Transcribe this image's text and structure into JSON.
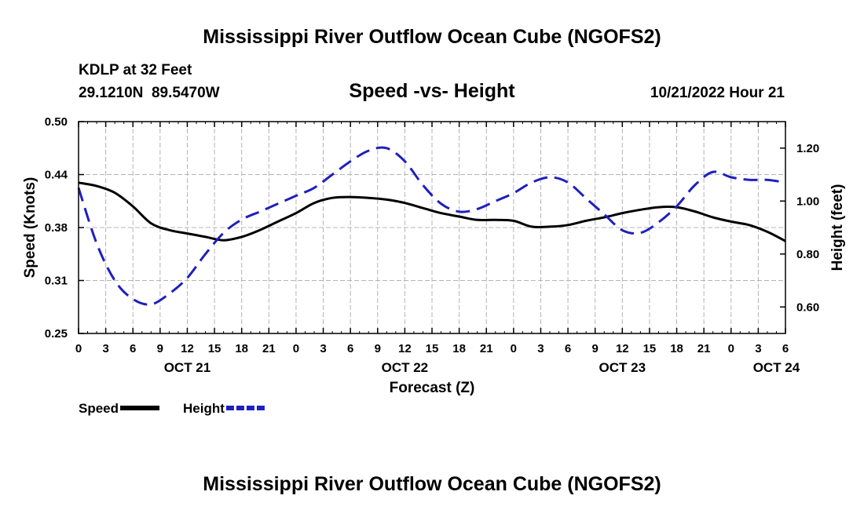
{
  "chart_data": {
    "type": "line",
    "title": "Mississippi River Outflow Ocean Cube (NGOFS2)",
    "subtitle": "Speed -vs- Height",
    "station": "KDLP at 32 Feet",
    "location": "29.1210N  89.5470W",
    "timestamp": "10/21/2022 Hour 21",
    "footer_title": "Mississippi River Outflow Ocean Cube (NGOFS2)",
    "xlabel": "Forecast (Z)",
    "ylabel_left": "Speed (Knots)",
    "ylabel_right": "Height (feet)",
    "x_unit": "hours from 00Z Oct 21",
    "xlim": [
      0,
      78
    ],
    "ylim_left": [
      0.25,
      0.5
    ],
    "ylim_right": [
      0.5,
      1.3
    ],
    "grid": true,
    "left_ticks": [
      {
        "value": 0.25,
        "label": "0.25"
      },
      {
        "value": 0.3125,
        "label": "0.31"
      },
      {
        "value": 0.375,
        "label": "0.38"
      },
      {
        "value": 0.4375,
        "label": "0.44"
      },
      {
        "value": 0.5,
        "label": "0.50"
      }
    ],
    "right_ticks": [
      {
        "value": 0.6,
        "label": "0.60"
      },
      {
        "value": 0.8,
        "label": "0.80"
      },
      {
        "value": 1.0,
        "label": "1.00"
      },
      {
        "value": 1.2,
        "label": "1.20"
      }
    ],
    "x_ticks": [
      {
        "value": 0,
        "label": "0"
      },
      {
        "value": 3,
        "label": "3"
      },
      {
        "value": 6,
        "label": "6"
      },
      {
        "value": 9,
        "label": "9"
      },
      {
        "value": 12,
        "label": "12"
      },
      {
        "value": 15,
        "label": "15"
      },
      {
        "value": 18,
        "label": "18"
      },
      {
        "value": 21,
        "label": "21"
      },
      {
        "value": 24,
        "label": "0"
      },
      {
        "value": 27,
        "label": "3"
      },
      {
        "value": 30,
        "label": "6"
      },
      {
        "value": 33,
        "label": "9"
      },
      {
        "value": 36,
        "label": "12"
      },
      {
        "value": 39,
        "label": "15"
      },
      {
        "value": 42,
        "label": "18"
      },
      {
        "value": 45,
        "label": "21"
      },
      {
        "value": 48,
        "label": "0"
      },
      {
        "value": 51,
        "label": "3"
      },
      {
        "value": 54,
        "label": "6"
      },
      {
        "value": 57,
        "label": "9"
      },
      {
        "value": 60,
        "label": "12"
      },
      {
        "value": 63,
        "label": "15"
      },
      {
        "value": 66,
        "label": "18"
      },
      {
        "value": 69,
        "label": "21"
      },
      {
        "value": 72,
        "label": "0"
      },
      {
        "value": 75,
        "label": "3"
      },
      {
        "value": 78,
        "label": "6"
      }
    ],
    "day_labels": [
      {
        "value": 12,
        "label": "OCT 21"
      },
      {
        "value": 36,
        "label": "OCT 22"
      },
      {
        "value": 60,
        "label": "OCT 23"
      },
      {
        "value": 77,
        "label": "OCT 24"
      }
    ],
    "series": [
      {
        "name": "Speed",
        "axis": "left",
        "color": "#000000",
        "dash": "solid",
        "x": [
          0,
          2,
          4,
          6,
          8,
          10,
          12,
          14,
          16,
          18,
          20,
          22,
          24,
          26,
          28,
          30,
          32,
          34,
          36,
          38,
          40,
          42,
          44,
          46,
          48,
          50,
          52,
          54,
          56,
          58,
          60,
          62,
          64,
          66,
          68,
          70,
          72,
          74,
          76,
          78
        ],
        "values": [
          0.428,
          0.424,
          0.416,
          0.4,
          0.38,
          0.372,
          0.368,
          0.364,
          0.36,
          0.364,
          0.372,
          0.382,
          0.392,
          0.404,
          0.41,
          0.411,
          0.41,
          0.408,
          0.404,
          0.398,
          0.392,
          0.388,
          0.384,
          0.384,
          0.383,
          0.376,
          0.376,
          0.378,
          0.383,
          0.387,
          0.392,
          0.396,
          0.399,
          0.399,
          0.394,
          0.387,
          0.382,
          0.378,
          0.37,
          0.359
        ]
      },
      {
        "name": "Height",
        "axis": "right",
        "color": "#1f1fbf",
        "dash": "dashed",
        "x": [
          0,
          2,
          4,
          6,
          8,
          10,
          12,
          14,
          16,
          18,
          20,
          22,
          24,
          26,
          28,
          30,
          32,
          34,
          36,
          38,
          40,
          42,
          44,
          46,
          48,
          50,
          52,
          54,
          56,
          58,
          60,
          62,
          64,
          66,
          68,
          70,
          72,
          74,
          76,
          78
        ],
        "values": [
          1.05,
          0.84,
          0.7,
          0.63,
          0.61,
          0.65,
          0.71,
          0.8,
          0.88,
          0.93,
          0.96,
          0.99,
          1.02,
          1.05,
          1.1,
          1.15,
          1.19,
          1.2,
          1.15,
          1.06,
          0.99,
          0.96,
          0.97,
          1.0,
          1.03,
          1.07,
          1.09,
          1.07,
          1.01,
          0.95,
          0.89,
          0.88,
          0.92,
          0.98,
          1.06,
          1.11,
          1.09,
          1.08,
          1.08,
          1.07
        ]
      }
    ],
    "legend": [
      {
        "name": "Speed",
        "color": "#000000",
        "dash": "solid"
      },
      {
        "name": "Height",
        "color": "#1f1fbf",
        "dash": "dashed"
      }
    ]
  }
}
